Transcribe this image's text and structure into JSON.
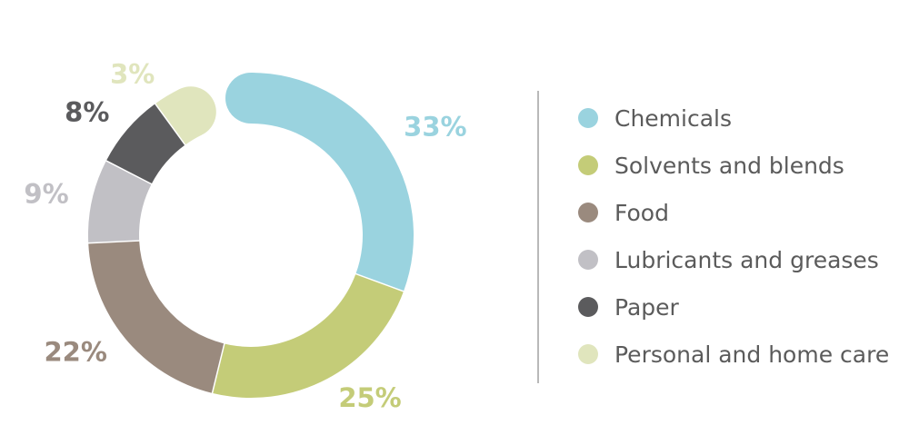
{
  "chart_data": {
    "type": "pie",
    "style": "donut",
    "title": "",
    "categories": [
      "Chemicals",
      "Solvents and blends",
      "Food",
      "Lubricants and greases",
      "Paper",
      "Personal and home care"
    ],
    "values": [
      33,
      25,
      22,
      9,
      8,
      3
    ],
    "value_labels": [
      "33%",
      "25%",
      "22%",
      "9%",
      "8%",
      "3%"
    ],
    "colors": [
      "#9ad3df",
      "#c4cc78",
      "#9a8a7e",
      "#c1c0c5",
      "#5b5b5d",
      "#e0e5bd"
    ],
    "legend_placement": "right",
    "legend": [
      {
        "label": "Chemicals",
        "color": "#9ad3df"
      },
      {
        "label": "Solvents and blends",
        "color": "#c4cc78"
      },
      {
        "label": "Food",
        "color": "#9a8a7e"
      },
      {
        "label": "Lubricants and greases",
        "color": "#c1c0c5"
      },
      {
        "label": "Paper",
        "color": "#5b5b5d"
      },
      {
        "label": "Personal and home care",
        "color": "#e0e5bd"
      }
    ]
  }
}
